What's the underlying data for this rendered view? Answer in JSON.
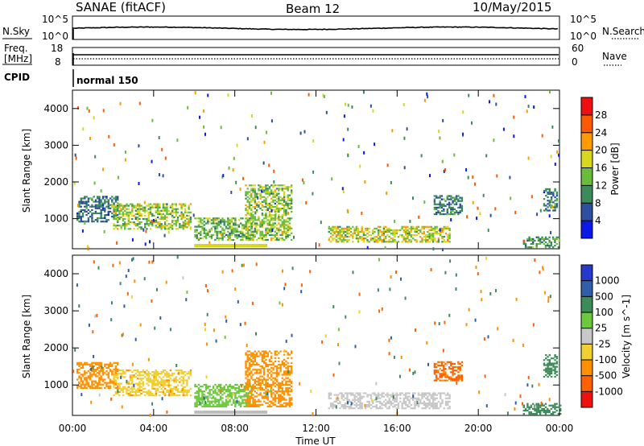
{
  "header": {
    "station": "SANAE (fitACF)",
    "beam": "Beam 12",
    "date": "10/May/2015"
  },
  "strip_noise": {
    "left_label": "N.Sky",
    "right_label": "N.Search",
    "left_ticks": [
      "10^5",
      "10^0"
    ],
    "right_ticks": [
      "10^5",
      "10^0"
    ]
  },
  "strip_freq": {
    "left_label_1": "Freq.",
    "left_label_2": "[MHz]",
    "right_label": "Nave",
    "left_ticks": [
      "18",
      "8"
    ],
    "right_ticks": [
      "60",
      "0"
    ]
  },
  "strip_cpid": {
    "label": "CPID",
    "mode": "normal 150"
  },
  "chart_data": [
    {
      "type": "heatmap",
      "quantity": "power",
      "ylabel": "Slant Range [km]",
      "ylim": [
        180,
        4500
      ],
      "yticks": [
        "1000",
        "2000",
        "3000",
        "4000"
      ],
      "ytick_values": [
        1000,
        2000,
        3000,
        4000
      ],
      "colorbar_label": "Power [dB]",
      "colorbar_ticks": [
        "4",
        "8",
        "12",
        "16",
        "20",
        "24",
        "28"
      ],
      "colorbar_range": [
        0,
        30
      ],
      "colorbar_colors": [
        "#0a1ae6",
        "#2e4fa0",
        "#3c8c5a",
        "#69bd3a",
        "#d8d71c",
        "#ff9a00",
        "#ff5a00",
        "#ee1010"
      ],
      "regions": [
        {
          "t0": 0.2,
          "t1": 2.2,
          "r0": 900,
          "r1": 1600,
          "v": 8
        },
        {
          "t0": 2.0,
          "t1": 5.8,
          "r0": 700,
          "r1": 1400,
          "v": 14
        },
        {
          "t0": 6.0,
          "t1": 8.8,
          "r0": 400,
          "r1": 1000,
          "v": 12
        },
        {
          "t0": 8.5,
          "t1": 10.8,
          "r0": 400,
          "r1": 1900,
          "v": 14
        },
        {
          "t0": 12.6,
          "t1": 18.6,
          "r0": 350,
          "r1": 800,
          "v": 16
        },
        {
          "t0": 17.8,
          "t1": 19.2,
          "r0": 1100,
          "r1": 1600,
          "v": 9
        },
        {
          "t0": 22.2,
          "t1": 24.0,
          "r0": 200,
          "r1": 500,
          "v": 10
        },
        {
          "t0": 23.2,
          "t1": 23.9,
          "r0": 1200,
          "r1": 1800,
          "v": 8
        }
      ]
    },
    {
      "type": "heatmap",
      "quantity": "velocity",
      "ylabel": "Slant Range [km]",
      "ylim": [
        180,
        4500
      ],
      "yticks": [
        "1000",
        "2000",
        "3000",
        "4000"
      ],
      "ytick_values": [
        1000,
        2000,
        3000,
        4000
      ],
      "xlabel": "Time UT",
      "xticks": [
        "00:00",
        "04:00",
        "08:00",
        "12:00",
        "16:00",
        "20:00",
        "00:00"
      ],
      "xtick_values": [
        0,
        4,
        8,
        12,
        16,
        20,
        24
      ],
      "colorbar_label": "Velocity [m s^-1]",
      "colorbar_ticks": [
        "1000",
        "500",
        "100",
        "25",
        "-25",
        "-100",
        "-500",
        "-1000"
      ],
      "colorbar_colors": [
        "#2838c8",
        "#2e5fa8",
        "#3c8c5a",
        "#6cc83c",
        "#c8c8c8",
        "#f0d030",
        "#ff9000",
        "#ff6000",
        "#ee1010"
      ],
      "regions": [
        {
          "t0": 0.2,
          "t1": 2.2,
          "r0": 900,
          "r1": 1600,
          "v": -200
        },
        {
          "t0": 2.0,
          "t1": 5.8,
          "r0": 700,
          "r1": 1400,
          "v": -80
        },
        {
          "t0": 6.0,
          "t1": 8.8,
          "r0": 400,
          "r1": 1000,
          "v": 50
        },
        {
          "t0": 8.5,
          "t1": 10.8,
          "r0": 400,
          "r1": 1900,
          "v": -300
        },
        {
          "t0": 12.6,
          "t1": 18.6,
          "r0": 350,
          "r1": 800,
          "v": 10
        },
        {
          "t0": 17.8,
          "t1": 19.2,
          "r0": 1100,
          "r1": 1600,
          "v": -600
        },
        {
          "t0": 22.2,
          "t1": 24.0,
          "r0": 200,
          "r1": 500,
          "v": 150
        },
        {
          "t0": 23.2,
          "t1": 23.9,
          "r0": 1200,
          "r1": 1800,
          "v": 300
        }
      ]
    }
  ]
}
